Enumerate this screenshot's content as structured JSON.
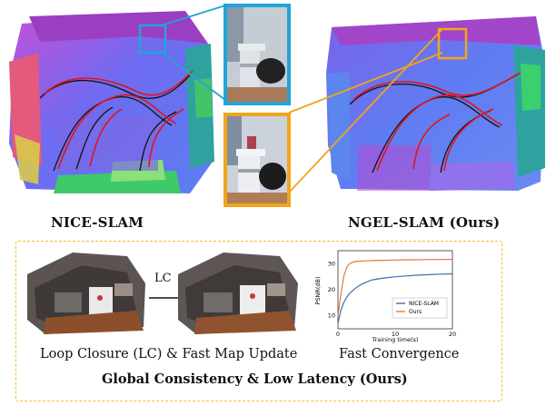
{
  "top": {
    "left_label": "NICE-SLAM",
    "right_label": "NGEL-SLAM (Ours)"
  },
  "bottom": {
    "lc_tag": "LC",
    "caption_left": "Loop Closure (LC) & Fast Map Update",
    "caption_right": "Fast Convergence",
    "title": "Global Consistency & Low Latency (Ours)"
  },
  "colors": {
    "inset_blue": "#21a4d7",
    "inset_orange": "#f1a51b",
    "dashed_border": "#f1c02c",
    "trajectory": "#e0141e"
  },
  "chart_data": {
    "type": "line",
    "x_ticks": [
      "0",
      "10",
      "20"
    ],
    "y_ticks": [
      "10",
      "20",
      "30"
    ],
    "xlabel": "Training time(s)",
    "ylabel": "PSNR(dB)",
    "xlim": [
      0,
      20
    ],
    "ylim": [
      5,
      35
    ],
    "legend_position": "lower-right",
    "series": [
      {
        "name": "NICE-SLAM",
        "color": "#3a6fb0",
        "x": [
          0,
          0.5,
          1,
          1.5,
          2,
          3,
          4,
          5,
          6,
          8,
          10,
          12,
          14,
          16,
          18,
          20
        ],
        "y": [
          7,
          12,
          15,
          17,
          18.5,
          20.5,
          22,
          23,
          23.8,
          24.5,
          25,
          25.3,
          25.6,
          25.8,
          26,
          26.1
        ]
      },
      {
        "name": "Ours",
        "color": "#e07b3a",
        "x": [
          0,
          0.5,
          1,
          1.5,
          2,
          2.5,
          3,
          4,
          5,
          6,
          8,
          10,
          12,
          14,
          16,
          18,
          20
        ],
        "y": [
          10,
          18,
          25,
          28.5,
          30,
          30.5,
          30.8,
          31,
          31.1,
          31.2,
          31.3,
          31.4,
          31.5,
          31.5,
          31.6,
          31.6,
          31.7
        ]
      }
    ]
  }
}
